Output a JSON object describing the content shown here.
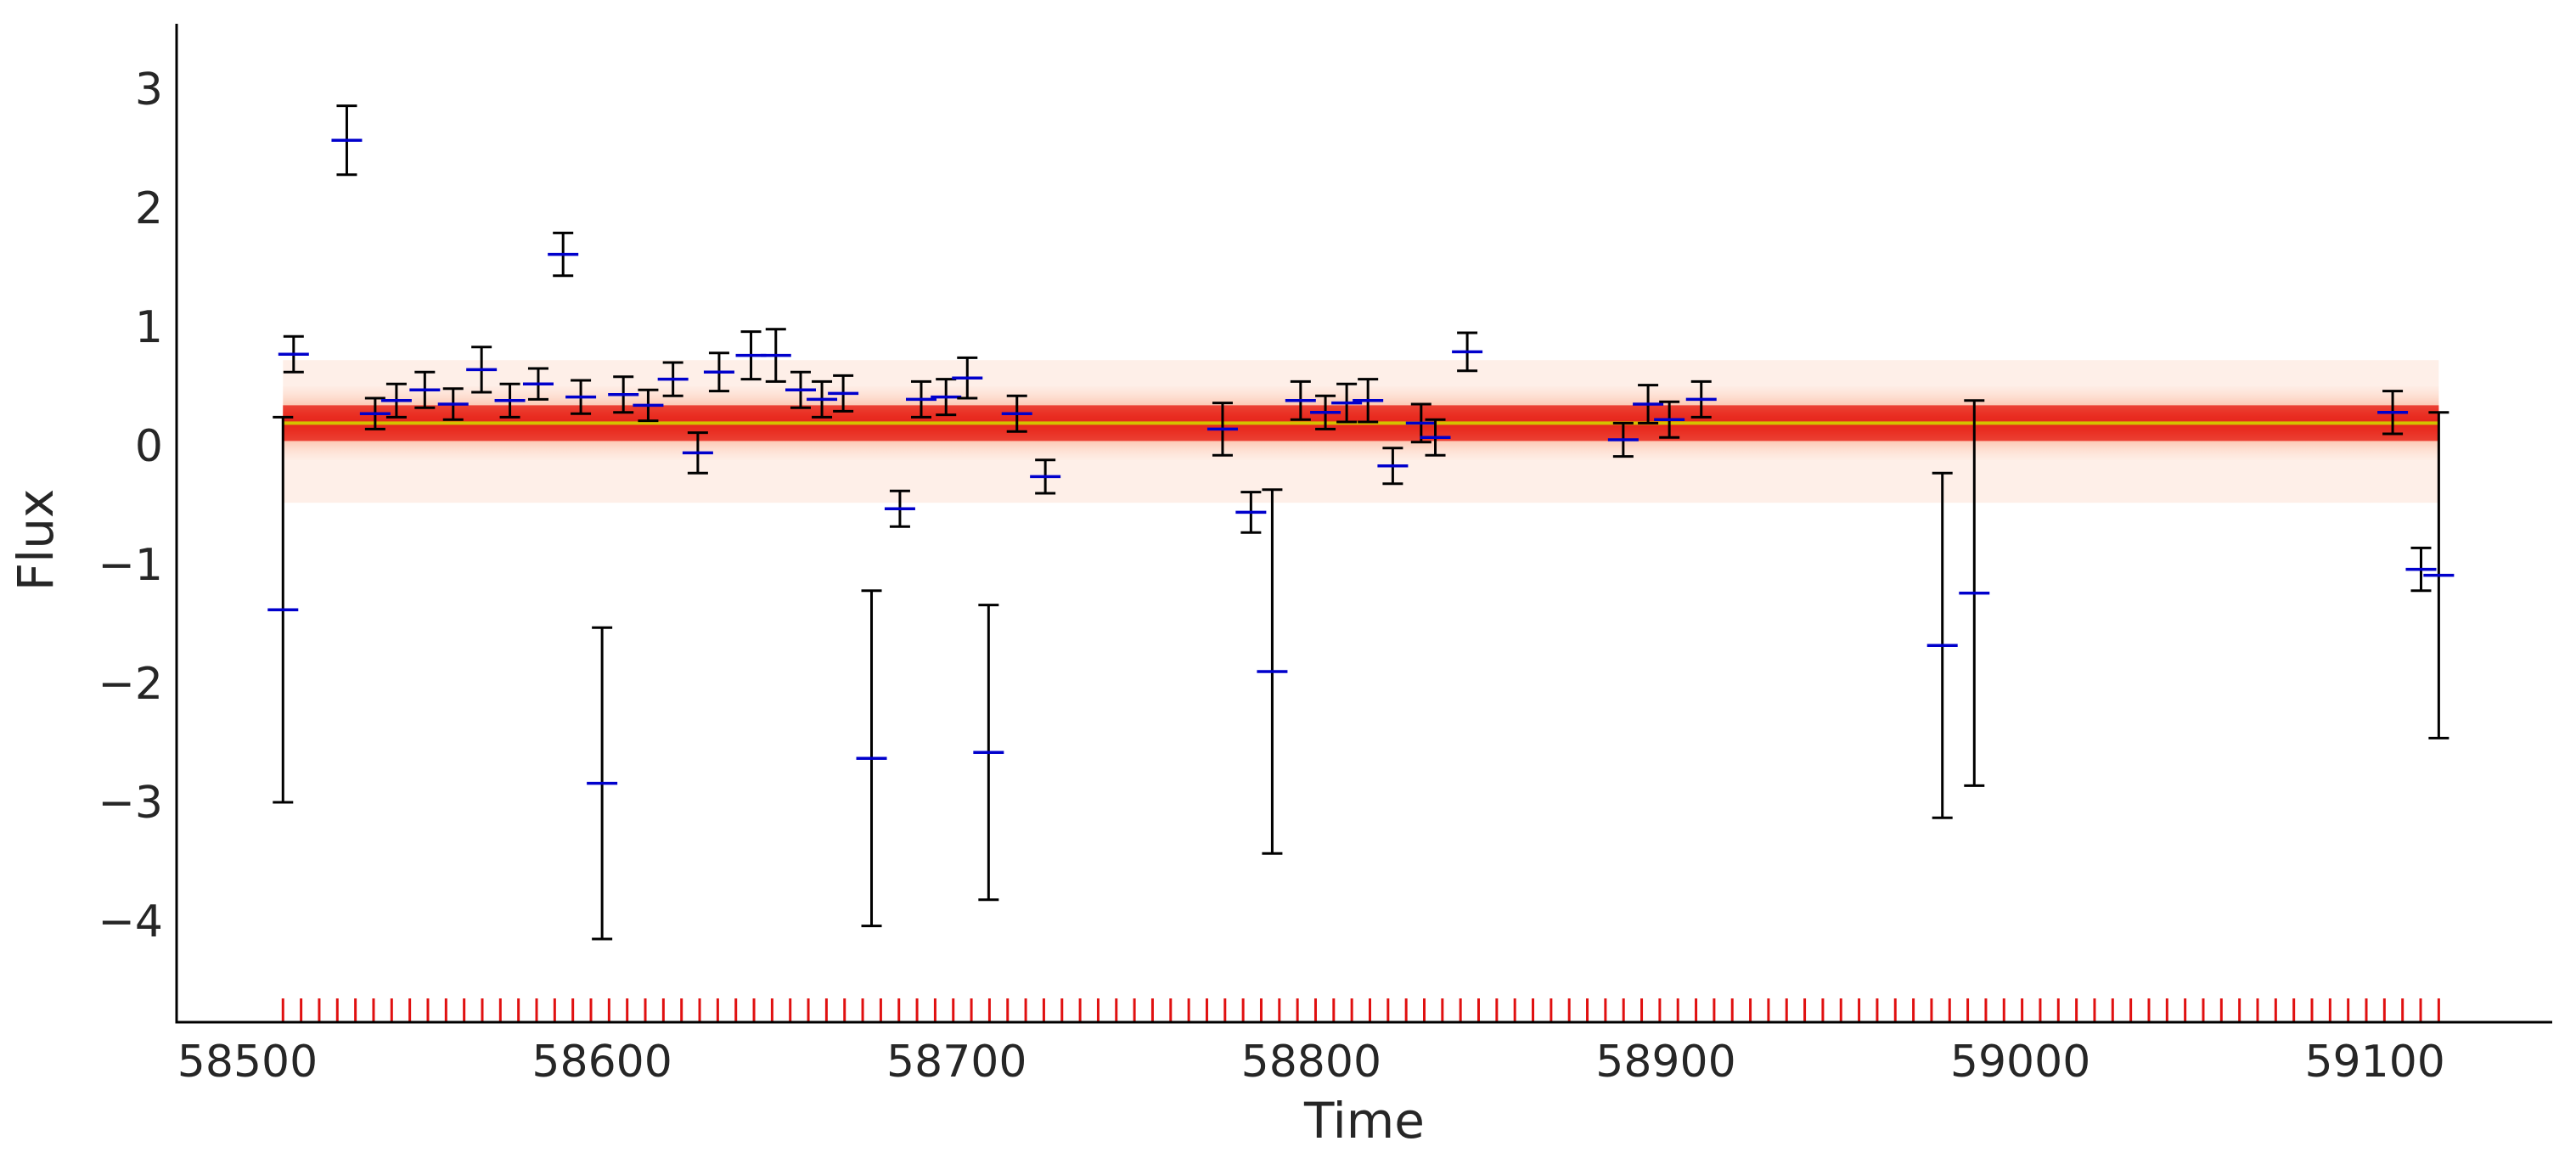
{
  "chart_data": {
    "type": "scatter",
    "title": "",
    "xlabel": "Time",
    "ylabel": "Flux",
    "xlim": [
      58480,
      59150
    ],
    "ylim": [
      -4.85,
      3.55
    ],
    "x_ticks": [
      58500,
      58600,
      58700,
      58800,
      58900,
      59000,
      59100
    ],
    "x_tick_labels": [
      "58500",
      "58600",
      "58700",
      "58800",
      "58900",
      "59000",
      "59100"
    ],
    "y_ticks": [
      -4,
      -3,
      -2,
      -1,
      0,
      1,
      2,
      3
    ],
    "y_tick_labels": [
      "−4",
      "−3",
      "−2",
      "−1",
      "0",
      "1",
      "2",
      "3"
    ],
    "grid": false,
    "legend": "none",
    "colors": {
      "point": "#0000cc",
      "errorbar": "#000000",
      "band": "#e8281c",
      "median_line": "#d4c000",
      "rug": "#e01010",
      "axis": "#000000"
    },
    "model": {
      "x_range": [
        58510,
        59118
      ],
      "median": 0.19,
      "band_1sigma": [
        0.04,
        0.34
      ],
      "band_2sigma": [
        -0.12,
        0.5
      ],
      "band_3sigma": [
        -0.48,
        0.72
      ]
    },
    "rug_range": [
      58510,
      59118
    ],
    "rug_count": 120,
    "points": [
      {
        "x": 58510,
        "y": -1.38,
        "err": 1.62
      },
      {
        "x": 58513,
        "y": 0.77,
        "err": 0.15
      },
      {
        "x": 58528,
        "y": 2.57,
        "err": 0.29
      },
      {
        "x": 58536,
        "y": 0.27,
        "err": 0.13
      },
      {
        "x": 58542,
        "y": 0.38,
        "err": 0.14
      },
      {
        "x": 58550,
        "y": 0.47,
        "err": 0.15
      },
      {
        "x": 58558,
        "y": 0.35,
        "err": 0.13
      },
      {
        "x": 58566,
        "y": 0.64,
        "err": 0.19
      },
      {
        "x": 58574,
        "y": 0.38,
        "err": 0.14
      },
      {
        "x": 58582,
        "y": 0.52,
        "err": 0.13
      },
      {
        "x": 58589,
        "y": 1.61,
        "err": 0.18
      },
      {
        "x": 58594,
        "y": 0.41,
        "err": 0.14
      },
      {
        "x": 58600,
        "y": -2.84,
        "err": 1.31
      },
      {
        "x": 58606,
        "y": 0.43,
        "err": 0.15
      },
      {
        "x": 58613,
        "y": 0.34,
        "err": 0.13
      },
      {
        "x": 58620,
        "y": 0.56,
        "err": 0.14
      },
      {
        "x": 58627,
        "y": -0.06,
        "err": 0.17
      },
      {
        "x": 58633,
        "y": 0.62,
        "err": 0.16
      },
      {
        "x": 58642,
        "y": 0.76,
        "err": 0.2
      },
      {
        "x": 58649,
        "y": 0.76,
        "err": 0.22
      },
      {
        "x": 58656,
        "y": 0.47,
        "err": 0.15
      },
      {
        "x": 58662,
        "y": 0.39,
        "err": 0.15
      },
      {
        "x": 58668,
        "y": 0.44,
        "err": 0.15
      },
      {
        "x": 58676,
        "y": -2.63,
        "err": 1.41
      },
      {
        "x": 58684,
        "y": -0.53,
        "err": 0.15
      },
      {
        "x": 58690,
        "y": 0.39,
        "err": 0.15
      },
      {
        "x": 58697,
        "y": 0.41,
        "err": 0.15
      },
      {
        "x": 58703,
        "y": 0.57,
        "err": 0.17
      },
      {
        "x": 58709,
        "y": -2.58,
        "err": 1.24
      },
      {
        "x": 58717,
        "y": 0.27,
        "err": 0.15
      },
      {
        "x": 58725,
        "y": -0.26,
        "err": 0.14
      },
      {
        "x": 58775,
        "y": 0.14,
        "err": 0.22
      },
      {
        "x": 58783,
        "y": -0.56,
        "err": 0.17
      },
      {
        "x": 58789,
        "y": -1.9,
        "err": 1.53
      },
      {
        "x": 58797,
        "y": 0.38,
        "err": 0.16
      },
      {
        "x": 58804,
        "y": 0.28,
        "err": 0.14
      },
      {
        "x": 58810,
        "y": 0.36,
        "err": 0.16
      },
      {
        "x": 58816,
        "y": 0.38,
        "err": 0.18
      },
      {
        "x": 58823,
        "y": -0.17,
        "err": 0.15
      },
      {
        "x": 58831,
        "y": 0.19,
        "err": 0.16
      },
      {
        "x": 58835,
        "y": 0.07,
        "err": 0.15
      },
      {
        "x": 58844,
        "y": 0.79,
        "err": 0.16
      },
      {
        "x": 58888,
        "y": 0.05,
        "err": 0.14
      },
      {
        "x": 58895,
        "y": 0.35,
        "err": 0.16
      },
      {
        "x": 58901,
        "y": 0.22,
        "err": 0.15
      },
      {
        "x": 58910,
        "y": 0.39,
        "err": 0.15
      },
      {
        "x": 58978,
        "y": -1.68,
        "err": 1.45
      },
      {
        "x": 58987,
        "y": -1.24,
        "err": 1.62
      },
      {
        "x": 59105,
        "y": 0.28,
        "err": 0.18
      },
      {
        "x": 59113,
        "y": -1.04,
        "err": 0.18
      },
      {
        "x": 59118,
        "y": -1.09,
        "err": 1.37
      }
    ]
  }
}
